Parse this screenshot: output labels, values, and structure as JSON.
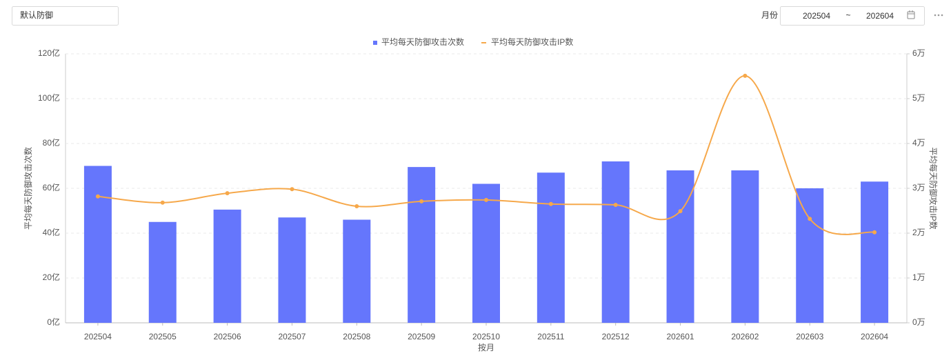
{
  "ui": {
    "preset": "默认防御",
    "month_label": "月份",
    "start": "202504",
    "separator": "~",
    "end": "202604"
  },
  "chart_data": {
    "type": "bar-line",
    "x_label": "按月",
    "y_label": "平均每天防御攻击次数",
    "y2_label": "平均每天防御攻击IP数",
    "categories": [
      "202504",
      "202505",
      "202506",
      "202507",
      "202508",
      "202509",
      "202510",
      "202511",
      "202512",
      "202601",
      "202602",
      "202603",
      "202604"
    ],
    "series": [
      {
        "name": "平均每天防御攻击次数",
        "type": "bar",
        "color": "#6576fc",
        "values": [
          70,
          45,
          50.5,
          47,
          46,
          69.5,
          62,
          67,
          72,
          68,
          68,
          60,
          63
        ]
      },
      {
        "name": "平均每天防御攻击IP数",
        "type": "line",
        "axis": "y2",
        "color": "#f6a84a",
        "values": [
          2.82,
          2.68,
          2.89,
          2.98,
          2.6,
          2.71,
          2.74,
          2.65,
          2.63,
          2.49,
          5.51,
          2.32,
          2.02
        ]
      }
    ],
    "ylim": [
      0,
      120
    ],
    "yticks": [
      {
        "value": 0,
        "label": "0亿"
      },
      {
        "value": 20,
        "label": "20亿"
      },
      {
        "value": 40,
        "label": "40亿"
      },
      {
        "value": 60,
        "label": "60亿"
      },
      {
        "value": 80,
        "label": "80亿"
      },
      {
        "value": 100,
        "label": "100亿"
      },
      {
        "value": 120,
        "label": "120亿"
      }
    ],
    "y2lim": [
      0,
      6
    ],
    "y2ticks": [
      {
        "value": 0,
        "label": "0万"
      },
      {
        "value": 1,
        "label": "1万"
      },
      {
        "value": 2,
        "label": "2万"
      },
      {
        "value": 3,
        "label": "3万"
      },
      {
        "value": 4,
        "label": "4万"
      },
      {
        "value": 5,
        "label": "5万"
      },
      {
        "value": 6,
        "label": "6万"
      }
    ],
    "grid": true,
    "legend": "top"
  }
}
